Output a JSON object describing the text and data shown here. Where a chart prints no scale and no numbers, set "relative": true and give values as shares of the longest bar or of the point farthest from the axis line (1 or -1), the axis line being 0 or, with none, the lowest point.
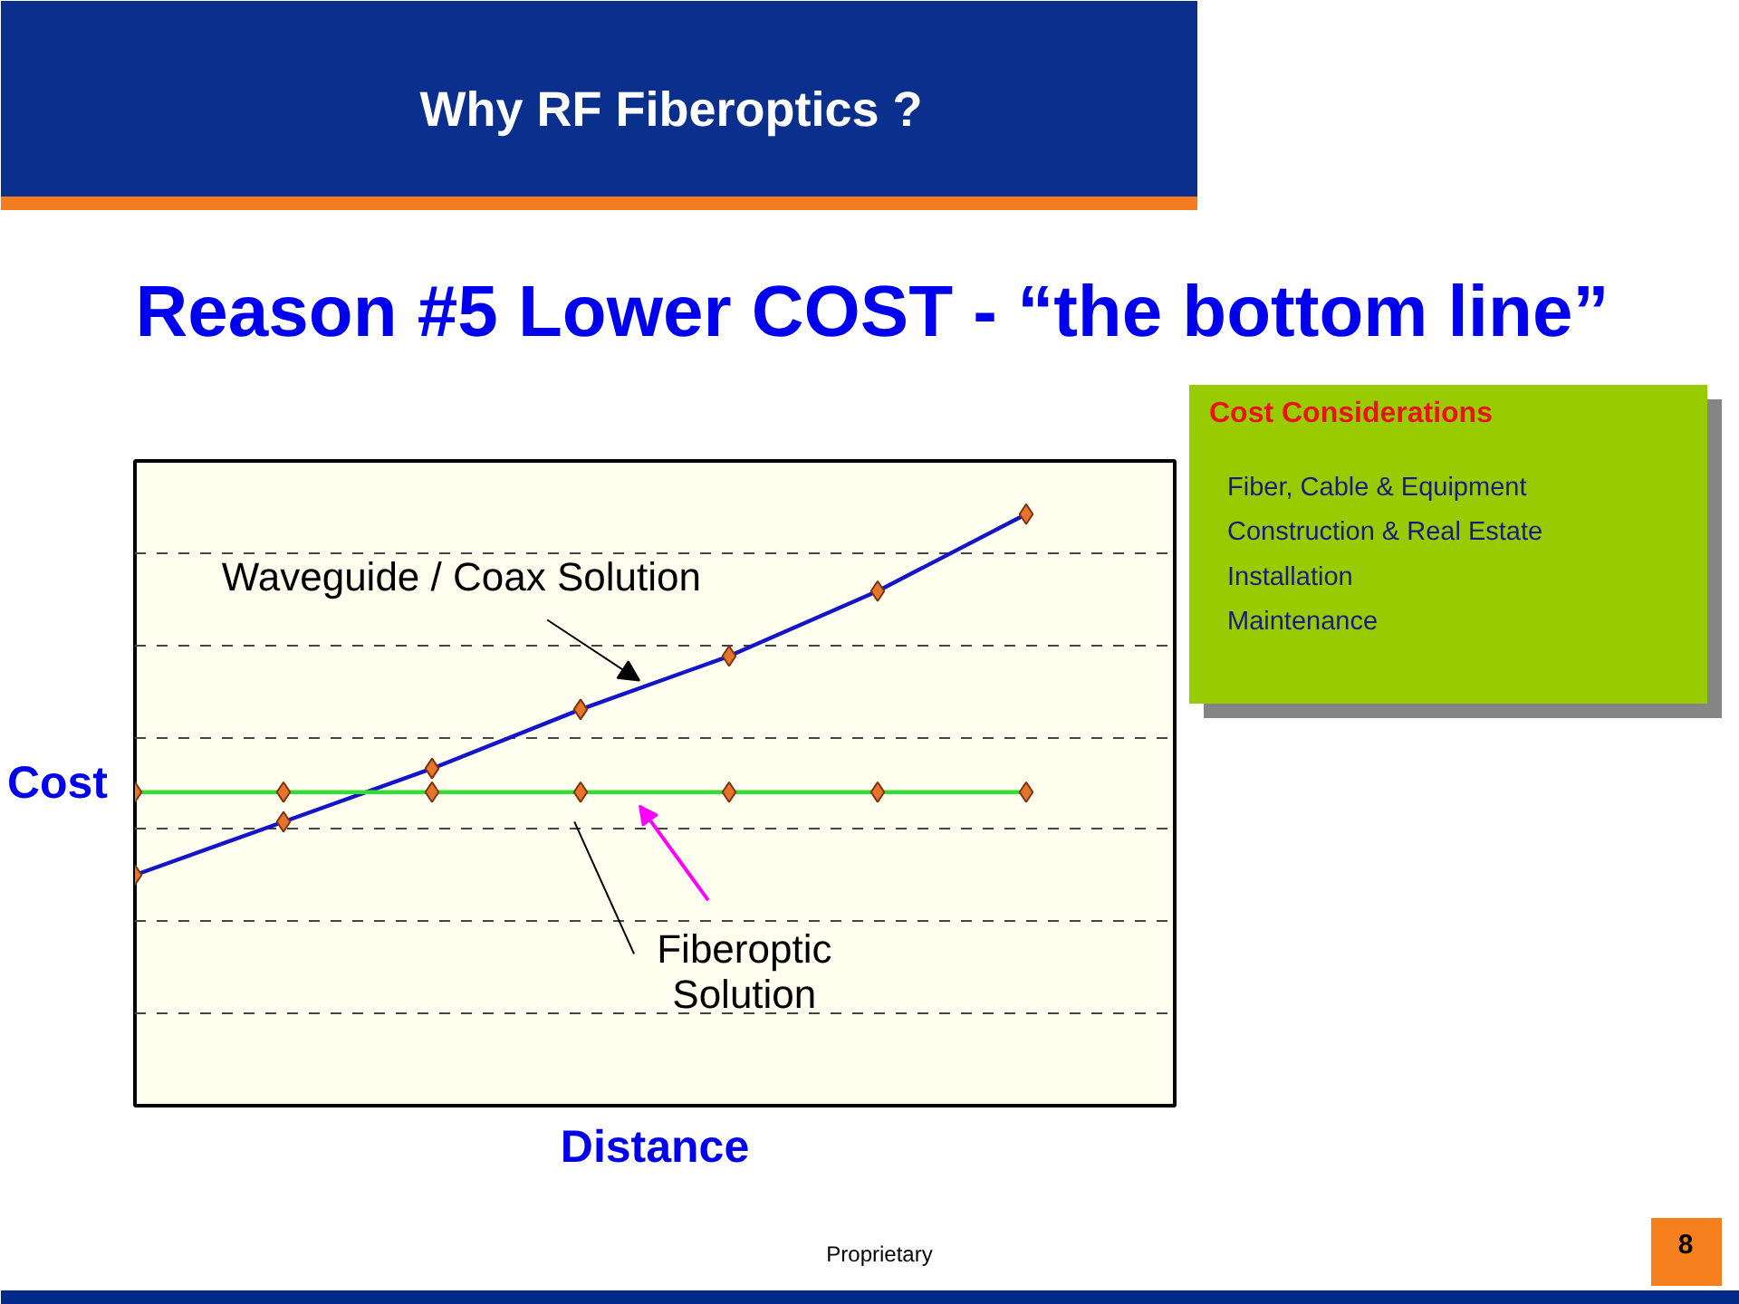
{
  "chart_data": [
    {
      "type": "line",
      "title": "Why RF Fiberoptics ?",
      "subtitle": "Reason #5 Lower COST - “the bottom line”",
      "xlabel": "Distance",
      "ylabel": "Cost",
      "categories": [
        null,
        null,
        null,
        null,
        null,
        null,
        null
      ],
      "relative": true,
      "series": [
        {
          "name": "Waveguide / Coax Solution",
          "color": "#1414c8",
          "values": [
            0.39,
            0.48,
            0.57,
            0.67,
            0.76,
            0.87,
            1.0
          ]
        },
        {
          "name": "Fiberoptic Solution",
          "color": "#33dd33",
          "values": [
            0.53,
            0.53,
            0.53,
            0.53,
            0.53,
            0.53,
            0.53
          ]
        }
      ],
      "marker": "diamond",
      "grid": "y",
      "annotations": [
        "Proprietary",
        "8"
      ]
    },
    {
      "type": "other",
      "title": "Cost Considerations",
      "annotations": [
        "Fiber, Cable & Equipment",
        "Construction & Real Estate",
        "Installation",
        "Maintenance"
      ]
    }
  ]
}
